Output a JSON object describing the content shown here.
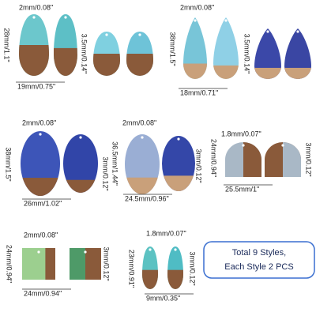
{
  "groups": [
    {
      "thickness": "2mm/0.08\"",
      "height": "28mm/1.1\"",
      "hole": "3.5mm/0.14\"",
      "width": "19mm/0.75\""
    },
    {
      "thickness": "2mm/0.08\"",
      "height": "38mm/1.5\"",
      "hole": "3.5mm/0.14\"",
      "width": "18mm/0.71\""
    },
    {
      "thickness": "2mm/0.08\"",
      "height": "38mm/1.5\"",
      "hole": "3mm/0.12\"",
      "width": "26mm/1.02\""
    },
    {
      "thickness": "2mm/0.08\"",
      "height": "36.5mm/1.44\"",
      "hole": "3mm/0.12\"",
      "width": "24.5mm/0.96\""
    },
    {
      "thickness": "1.8mm/0.07\"",
      "height": "24mm/0.94\"",
      "hole": "3mm/0.12\"",
      "width": "25.5mm/1\""
    },
    {
      "thickness": "2mm/0.08\"",
      "height": "24mm/0.94\"",
      "hole": "3mm/0.12\"",
      "width": "24mm/0.94\""
    },
    {
      "thickness": "1.8mm/0.07\"",
      "height": "23mm/0.91\"",
      "hole": "3mm/0.12\"",
      "width": "9mm/0.35\""
    }
  ],
  "note": [
    "Total 9 Styles,",
    "Each Style 2 PCS"
  ]
}
